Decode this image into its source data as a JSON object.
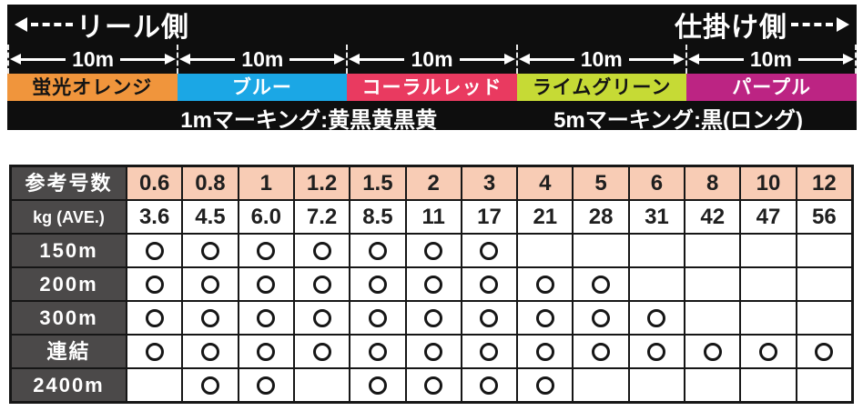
{
  "banner": {
    "reel_side_label": "リール側",
    "rig_side_label": "仕掛け側",
    "segment_length_label": "10m",
    "segments": [
      {
        "name": "蛍光オレンジ",
        "color": "#f0953c",
        "text_color": "#141414"
      },
      {
        "name": "ブルー",
        "color": "#1ba7e5",
        "text_color": "#ffffff"
      },
      {
        "name": "コーラルレッド",
        "color": "#e93a60",
        "text_color": "#ffffff"
      },
      {
        "name": "ライムグリーン",
        "color": "#c6da35",
        "text_color": "#141414"
      },
      {
        "name": "パープル",
        "color": "#bc2483",
        "text_color": "#ffffff"
      }
    ],
    "marking_1m": "1mマーキング:黄黒黄黒黄",
    "marking_5m": "5mマーキング:黒(ロング)"
  },
  "table": {
    "header_row_label": "参考号数",
    "sizes": [
      "0.6",
      "0.8",
      "1",
      "1.2",
      "1.5",
      "2",
      "3",
      "4",
      "5",
      "6",
      "8",
      "10",
      "12"
    ],
    "strength_row_label": "kg (AVE.)",
    "strengths": [
      "3.6",
      "4.5",
      "6.0",
      "7.2",
      "8.5",
      "11",
      "17",
      "21",
      "28",
      "31",
      "42",
      "47",
      "56"
    ],
    "mark_symbol": "○",
    "rows": [
      {
        "label": "150m",
        "marks": [
          1,
          1,
          1,
          1,
          1,
          1,
          1,
          0,
          0,
          0,
          0,
          0,
          0
        ]
      },
      {
        "label": "200m",
        "marks": [
          1,
          1,
          1,
          1,
          1,
          1,
          1,
          1,
          1,
          0,
          0,
          0,
          0
        ]
      },
      {
        "label": "300m",
        "marks": [
          1,
          1,
          1,
          1,
          1,
          1,
          1,
          1,
          1,
          1,
          0,
          0,
          0
        ]
      },
      {
        "label": "連結",
        "marks": [
          1,
          1,
          1,
          1,
          1,
          1,
          1,
          1,
          1,
          1,
          1,
          1,
          1
        ]
      },
      {
        "label": "2400m",
        "marks": [
          0,
          1,
          1,
          0,
          1,
          1,
          1,
          1,
          0,
          0,
          0,
          0,
          0
        ]
      }
    ],
    "colors": {
      "header_bg": "#f8ccb5",
      "label_bg": "#4b4949",
      "border": "#161616"
    }
  }
}
